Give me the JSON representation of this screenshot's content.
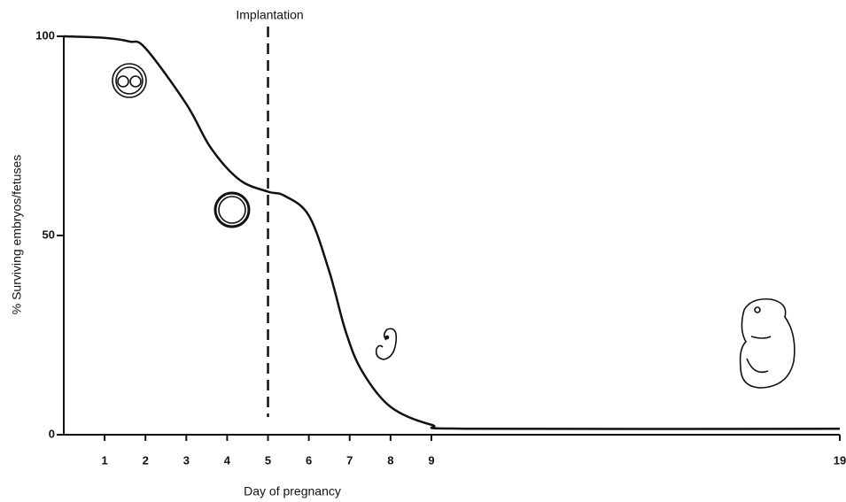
{
  "chart_data": {
    "type": "line",
    "xlabel": "Day of pregnancy",
    "ylabel": "% Surviving embryos/fetuses",
    "x": [
      0,
      1,
      1.6,
      2,
      3,
      3.6,
      4.3,
      5,
      5.4,
      6,
      6.5,
      6.9,
      7.3,
      8,
      9,
      10,
      19
    ],
    "series": [
      {
        "color": "#111111",
        "values": [
          100,
          99.6,
          98.7,
          97,
          83,
          72,
          64,
          61,
          60,
          55,
          41,
          26,
          16,
          7,
          2.5,
          1.5,
          1.5
        ]
      }
    ],
    "xlim": [
      0,
      19
    ],
    "xticks": [
      1,
      2,
      3,
      4,
      5,
      6,
      7,
      8,
      9,
      19
    ],
    "ylim": [
      0,
      100
    ],
    "yticks": [
      0,
      50,
      100
    ],
    "annotations": [
      {
        "x": 5,
        "label": "Implantation"
      }
    ]
  }
}
